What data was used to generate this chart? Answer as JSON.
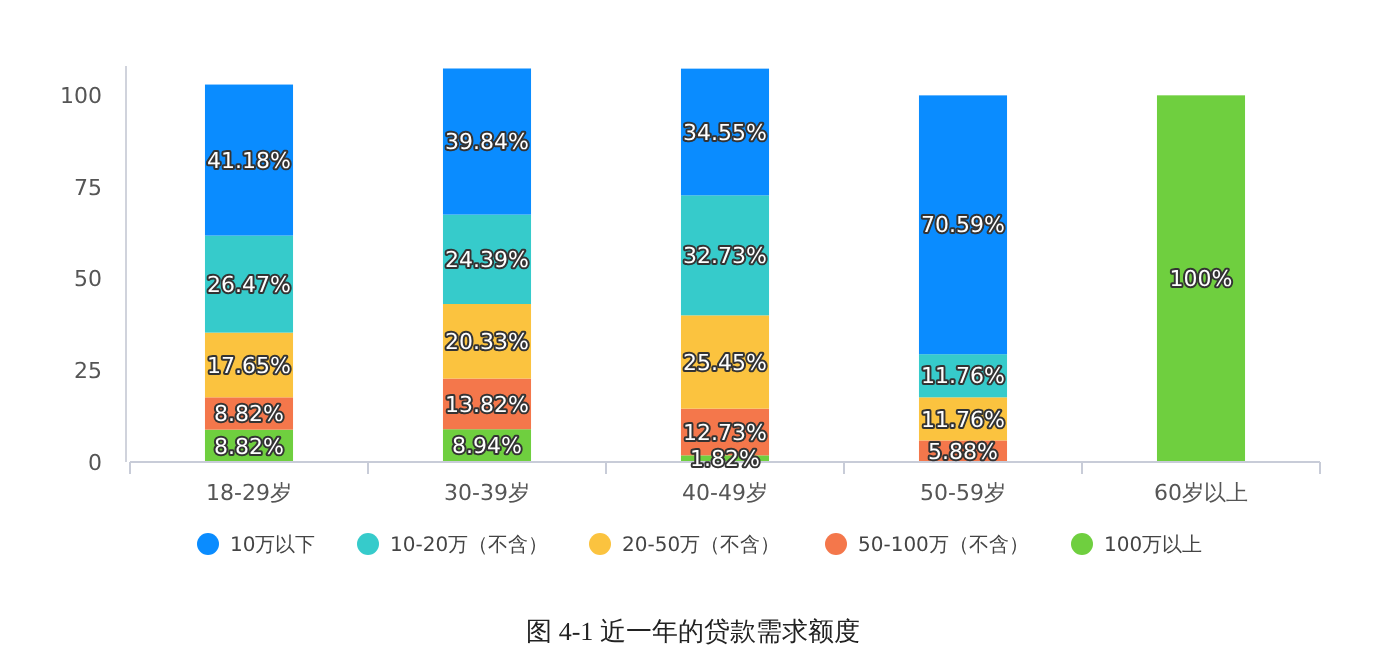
{
  "chart_data": {
    "type": "bar",
    "stacked": true,
    "categories": [
      "18-29岁",
      "30-39岁",
      "40-49岁",
      "50-59岁",
      "60岁以上"
    ],
    "series": [
      {
        "name": "100万以上",
        "color": "#6fcf3f",
        "values": [
          8.82,
          8.94,
          1.82,
          null,
          100
        ],
        "value_labels": [
          "8.82%",
          "8.94%",
          "1.82%",
          null,
          "100%"
        ]
      },
      {
        "name": "50-100万（不含）",
        "color": "#f4774b",
        "values": [
          8.82,
          13.82,
          12.73,
          5.88,
          null
        ],
        "value_labels": [
          "8.82%",
          "13.82%",
          "12.73%",
          "5.88%",
          null
        ]
      },
      {
        "name": "20-50万（不含）",
        "color": "#fbc33f",
        "values": [
          17.65,
          20.33,
          25.45,
          11.76,
          null
        ],
        "value_labels": [
          "17.65%",
          "20.33%",
          "25.45%",
          "11.76%",
          null
        ]
      },
      {
        "name": "10-20万（不含）",
        "color": "#36cbcb",
        "values": [
          26.47,
          24.39,
          32.73,
          11.76,
          null
        ],
        "value_labels": [
          "26.47%",
          "24.39%",
          "32.73%",
          "11.76%",
          null
        ]
      },
      {
        "name": "10万以下",
        "color": "#0a8cff",
        "values": [
          41.18,
          39.84,
          34.55,
          70.59,
          null
        ],
        "value_labels": [
          "41.18%",
          "39.84%",
          "34.55%",
          "70.59%",
          null
        ]
      }
    ],
    "ylim": [
      0,
      108
    ],
    "yticks": [
      0,
      25,
      50,
      75,
      100
    ],
    "grid": false,
    "legend": "bottom",
    "marker": "circle",
    "annotations": [
      "图 4-1 近一年的贷款需求额度"
    ]
  }
}
